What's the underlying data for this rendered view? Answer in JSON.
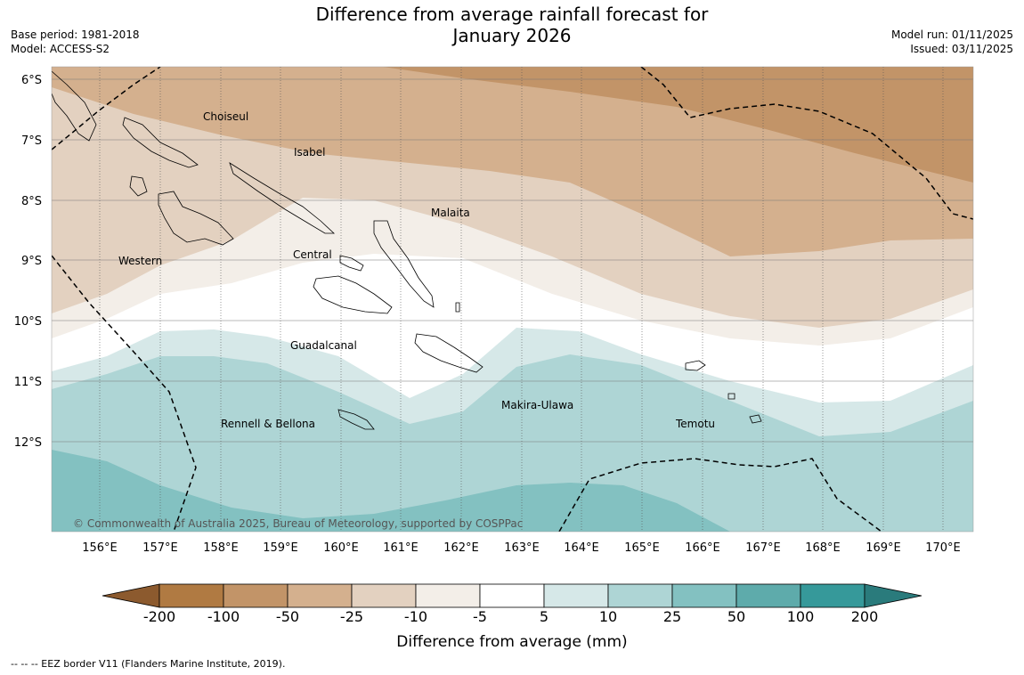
{
  "title_line1": "Difference from average rainfall forecast for",
  "title_line2": "January 2026",
  "base_period": "Base period: 1981-2018",
  "model": "Model: ACCESS-S2",
  "model_run": "Model run: 01/11/2025",
  "issued": "Issued: 03/11/2025",
  "lat_labels": [
    "6°S",
    "7°S",
    "8°S",
    "9°S",
    "10°S",
    "11°S",
    "12°S"
  ],
  "lon_labels": [
    "156°E",
    "157°E",
    "158°E",
    "159°E",
    "160°E",
    "161°E",
    "162°E",
    "163°E",
    "164°E",
    "165°E",
    "166°E",
    "167°E",
    "168°E",
    "169°E",
    "170°E"
  ],
  "provinces": {
    "choiseul": "Choiseul",
    "isabel": "Isabel",
    "malaita": "Malaita",
    "western": "Western",
    "central": "Central",
    "guadalcanal": "Guadalcanal",
    "makira": "Makira-Ulawa",
    "rennell": "Rennell & Bellona",
    "temotu": "Temotu"
  },
  "copyright": "© Commonwealth of Australia 2025, Bureau of Meteorology, supported by COSPPac",
  "colorbar": {
    "label": "Difference from average (mm)",
    "ticks": [
      "-200",
      "-100",
      "-50",
      "-25",
      "-10",
      "-5",
      "5",
      "10",
      "25",
      "50",
      "100",
      "200"
    ],
    "colors": [
      "#8c5a2e",
      "#b07a42",
      "#c29468",
      "#d4b08e",
      "#e3d1c0",
      "#f3eee8",
      "#ffffff",
      "#d6e8e8",
      "#aed5d5",
      "#83c1c1",
      "#5eabab",
      "#36999a",
      "#2a7b7c"
    ]
  },
  "footer": "-- -- -- EEZ border V11 (Flanders Marine Institute, 2019)."
}
